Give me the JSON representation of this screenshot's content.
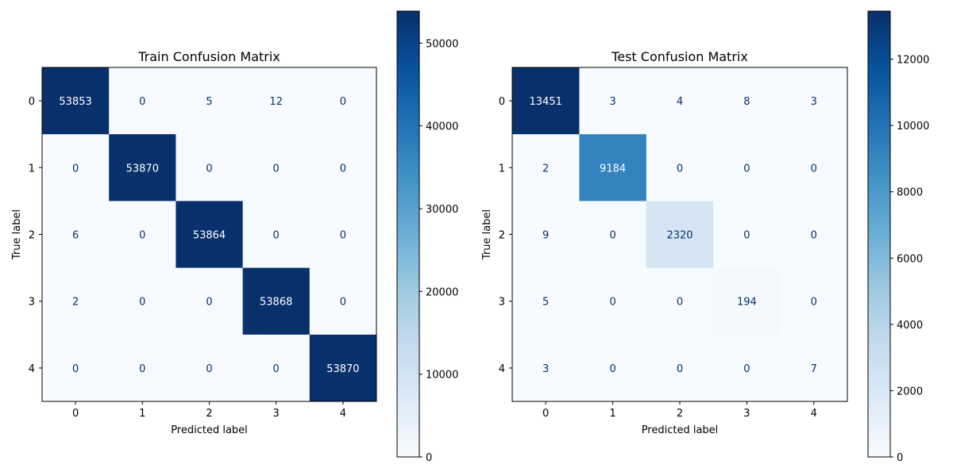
{
  "chart_data": [
    {
      "type": "heatmap",
      "title": "Train Confusion Matrix",
      "xlabel": "Predicted label",
      "ylabel": "True label",
      "x_categories": [
        "0",
        "1",
        "2",
        "3",
        "4"
      ],
      "y_categories": [
        "0",
        "1",
        "2",
        "3",
        "4"
      ],
      "values": [
        [
          53853,
          0,
          5,
          12,
          0
        ],
        [
          0,
          53870,
          0,
          0,
          0
        ],
        [
          6,
          0,
          53864,
          0,
          0
        ],
        [
          2,
          0,
          0,
          53868,
          0
        ],
        [
          0,
          0,
          0,
          0,
          53870
        ]
      ],
      "colormap": "Blues",
      "colorbar": {
        "min": 0,
        "max": 53870,
        "ticks": [
          0,
          10000,
          20000,
          30000,
          40000,
          50000
        ]
      }
    },
    {
      "type": "heatmap",
      "title": "Test Confusion Matrix",
      "xlabel": "Predicted label",
      "ylabel": "True label",
      "x_categories": [
        "0",
        "1",
        "2",
        "3",
        "4"
      ],
      "y_categories": [
        "0",
        "1",
        "2",
        "3",
        "4"
      ],
      "values": [
        [
          13451,
          3,
          4,
          8,
          3
        ],
        [
          2,
          9184,
          0,
          0,
          0
        ],
        [
          9,
          0,
          2320,
          0,
          0
        ],
        [
          5,
          0,
          0,
          194,
          0
        ],
        [
          3,
          0,
          0,
          0,
          7
        ]
      ],
      "colormap": "Blues",
      "colorbar": {
        "min": 0,
        "max": 13451,
        "ticks": [
          0,
          2000,
          4000,
          6000,
          8000,
          10000,
          12000
        ]
      }
    }
  ]
}
